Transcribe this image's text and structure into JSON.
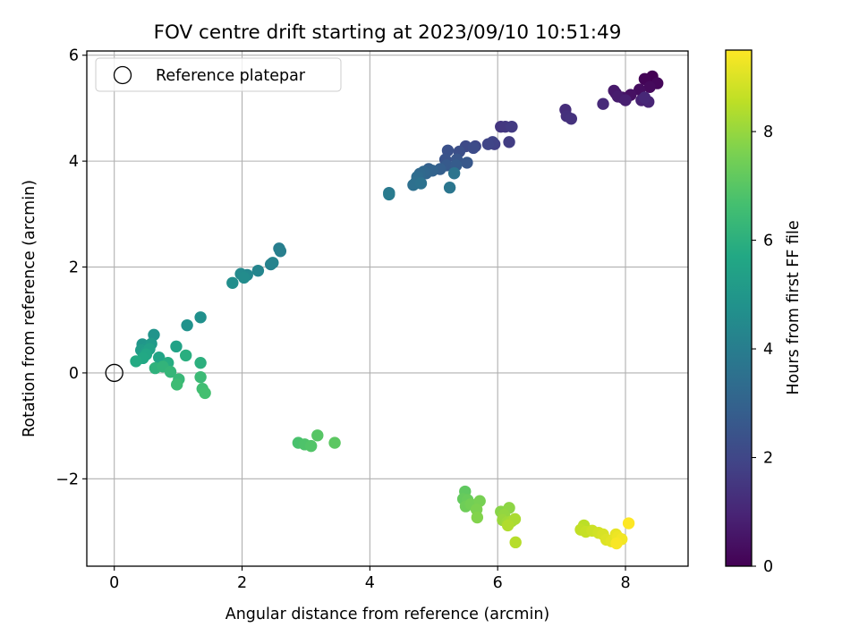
{
  "chart_data": {
    "type": "scatter",
    "title": "FOV centre drift starting at 2023/09/10 10:51:49",
    "xlabel": "Angular distance from reference (arcmin)",
    "ylabel": "Rotation from reference (arcmin)",
    "xlim": [
      -0.43,
      8.98
    ],
    "ylim": [
      -3.65,
      6.08
    ],
    "xticks": [
      0,
      2,
      4,
      6,
      8
    ],
    "xtick_labels": [
      "0",
      "2",
      "4",
      "6",
      "8"
    ],
    "yticks": [
      -2,
      0,
      2,
      4,
      6
    ],
    "ytick_labels": [
      "−2",
      "0",
      "2",
      "4",
      "6"
    ],
    "grid": true,
    "legend": {
      "placement": "top-left",
      "entries": [
        "Reference platepar"
      ]
    },
    "reference_point": {
      "x": 0,
      "y": 0,
      "label": "Reference platepar"
    },
    "colorbar": {
      "label": "Hours from first FF file",
      "colormap": "viridis",
      "range": [
        0,
        9.5
      ],
      "ticks": [
        0,
        2,
        4,
        6,
        8
      ],
      "tick_labels": [
        "0",
        "2",
        "4",
        "6",
        "8"
      ]
    },
    "series": [
      {
        "points": [
          [
            8.42,
            5.6
          ],
          [
            8.3,
            5.55
          ],
          [
            8.5,
            5.47
          ],
          [
            8.38,
            5.4
          ],
          [
            8.22,
            5.35
          ],
          [
            8.08,
            5.25
          ],
          [
            7.95,
            5.2
          ],
          [
            7.85,
            5.28
          ],
          [
            7.82,
            5.33
          ],
          [
            7.88,
            5.22
          ],
          [
            8.0,
            5.15
          ],
          [
            8.25,
            5.15
          ],
          [
            8.36,
            5.12
          ],
          [
            8.3,
            5.2
          ],
          [
            7.65,
            5.08
          ],
          [
            7.06,
            4.97
          ],
          [
            7.08,
            4.85
          ],
          [
            7.15,
            4.8
          ],
          [
            6.05,
            4.65
          ],
          [
            6.12,
            4.65
          ],
          [
            6.22,
            4.65
          ],
          [
            6.18,
            4.36
          ],
          [
            5.95,
            4.32
          ],
          [
            5.92,
            4.36
          ],
          [
            5.85,
            4.32
          ],
          [
            5.65,
            4.28
          ],
          [
            5.5,
            4.28
          ],
          [
            5.62,
            4.25
          ],
          [
            5.4,
            4.18
          ],
          [
            5.22,
            4.2
          ],
          [
            5.18,
            4.03
          ],
          [
            5.36,
            4.03
          ],
          [
            5.52,
            3.97
          ],
          [
            5.2,
            3.92
          ],
          [
            5.35,
            3.92
          ],
          [
            5.1,
            3.85
          ],
          [
            4.92,
            3.85
          ],
          [
            4.98,
            3.82
          ],
          [
            4.88,
            3.77
          ],
          [
            4.84,
            3.8
          ],
          [
            4.78,
            3.76
          ],
          [
            4.74,
            3.7
          ],
          [
            4.72,
            3.6
          ],
          [
            4.68,
            3.55
          ],
          [
            4.8,
            3.58
          ],
          [
            5.32,
            3.77
          ],
          [
            5.25,
            3.5
          ],
          [
            4.3,
            3.4
          ],
          [
            4.3,
            3.37
          ],
          [
            2.58,
            2.35
          ],
          [
            2.6,
            2.3
          ],
          [
            2.45,
            2.05
          ],
          [
            2.48,
            2.08
          ],
          [
            2.25,
            1.93
          ],
          [
            2.08,
            1.85
          ],
          [
            1.98,
            1.87
          ],
          [
            2.03,
            1.8
          ],
          [
            1.85,
            1.7
          ],
          [
            1.35,
            1.05
          ],
          [
            1.14,
            0.9
          ],
          [
            0.62,
            0.72
          ],
          [
            0.44,
            0.54
          ],
          [
            0.52,
            0.49
          ],
          [
            0.58,
            0.55
          ],
          [
            0.42,
            0.43
          ],
          [
            0.48,
            0.38
          ],
          [
            0.55,
            0.45
          ],
          [
            0.97,
            0.5
          ],
          [
            0.7,
            0.29
          ],
          [
            0.5,
            0.35
          ],
          [
            0.45,
            0.28
          ],
          [
            0.34,
            0.22
          ],
          [
            0.84,
            0.19
          ],
          [
            1.12,
            0.33
          ],
          [
            1.35,
            0.19
          ],
          [
            0.64,
            0.09
          ],
          [
            0.76,
            0.12
          ],
          [
            0.88,
            0.02
          ],
          [
            1.01,
            -0.12
          ],
          [
            1.35,
            -0.08
          ],
          [
            0.98,
            -0.22
          ],
          [
            1.38,
            -0.3
          ],
          [
            1.42,
            -0.38
          ],
          [
            2.88,
            -1.32
          ],
          [
            2.98,
            -1.35
          ],
          [
            3.08,
            -1.38
          ],
          [
            3.18,
            -1.18
          ],
          [
            3.45,
            -1.32
          ],
          [
            5.49,
            -2.24
          ],
          [
            5.46,
            -2.38
          ],
          [
            5.53,
            -2.4
          ],
          [
            5.5,
            -2.52
          ],
          [
            5.58,
            -2.48
          ],
          [
            5.72,
            -2.42
          ],
          [
            5.67,
            -2.58
          ],
          [
            5.68,
            -2.73
          ],
          [
            6.05,
            -2.62
          ],
          [
            6.18,
            -2.55
          ],
          [
            6.1,
            -2.68
          ],
          [
            6.08,
            -2.78
          ],
          [
            6.15,
            -2.82
          ],
          [
            6.22,
            -2.8
          ],
          [
            6.27,
            -2.76
          ],
          [
            6.16,
            -2.88
          ],
          [
            6.28,
            -3.2
          ],
          [
            7.35,
            -2.88
          ],
          [
            7.3,
            -2.96
          ],
          [
            7.38,
            -3.0
          ],
          [
            7.48,
            -2.98
          ],
          [
            7.58,
            -3.02
          ],
          [
            7.65,
            -3.05
          ],
          [
            7.7,
            -3.15
          ],
          [
            7.78,
            -3.18
          ],
          [
            7.85,
            -3.05
          ],
          [
            7.88,
            -3.1
          ],
          [
            7.94,
            -3.14
          ],
          [
            7.86,
            -3.22
          ],
          [
            8.05,
            -2.84
          ]
        ]
      }
    ]
  }
}
